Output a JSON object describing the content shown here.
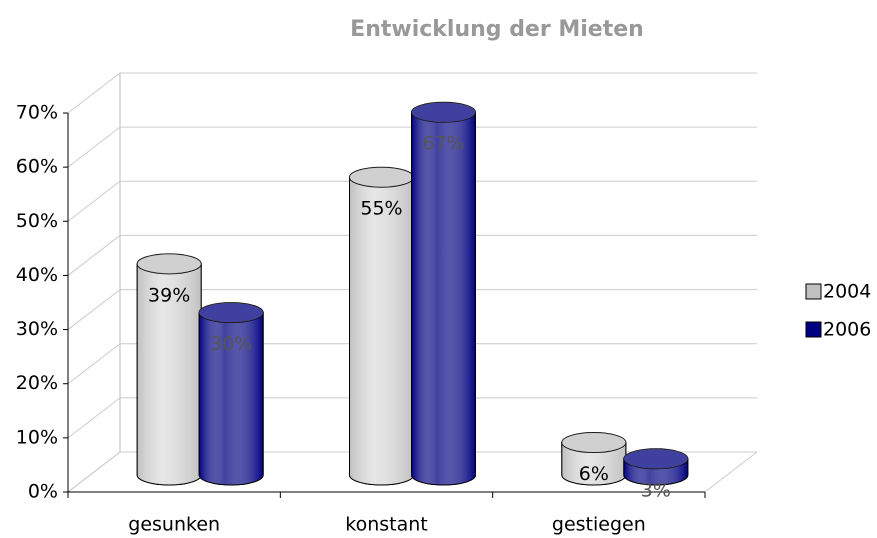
{
  "chart_data": {
    "type": "bar3d",
    "title": "Entwicklung der Mieten",
    "categories": [
      "gesunken",
      "konstant",
      "gestiegen"
    ],
    "series": [
      {
        "name": "2004",
        "color": "#c0c0c0",
        "values": [
          39,
          55,
          6
        ],
        "value_labels": [
          "39%",
          "55%",
          "6%"
        ]
      },
      {
        "name": "2006",
        "color": "#000080",
        "values": [
          30,
          67,
          3
        ],
        "value_labels": [
          "30%",
          "67%",
          "3%"
        ]
      }
    ],
    "ylim": [
      0,
      70
    ],
    "yticks": [
      {
        "value": 0,
        "label": "0%"
      },
      {
        "value": 10,
        "label": "10%"
      },
      {
        "value": 20,
        "label": "20%"
      },
      {
        "value": 30,
        "label": "30%"
      },
      {
        "value": 40,
        "label": "40%"
      },
      {
        "value": 50,
        "label": "50%"
      },
      {
        "value": 60,
        "label": "60%"
      },
      {
        "value": 70,
        "label": "70%"
      }
    ],
    "grid": true,
    "legend": "right"
  }
}
